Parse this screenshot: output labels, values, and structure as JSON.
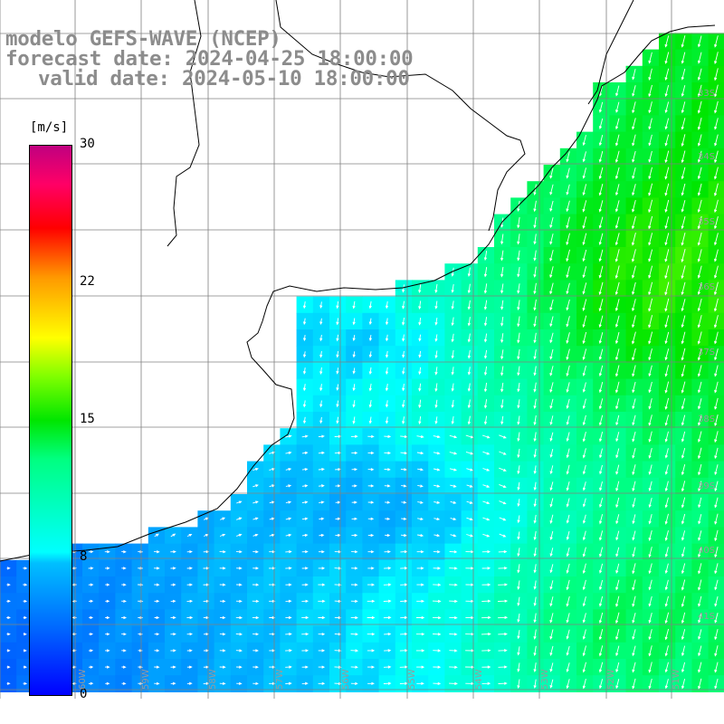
{
  "header": {
    "title": "modelo GEFS-WAVE (NCEP)",
    "forecast": "forecast date: 2024-04-25 18:00:00",
    "valid": "valid date: 2024-05-10 18:00:00"
  },
  "colorbar": {
    "unit": "[m/s]",
    "min": 0,
    "max": 30,
    "ticks": [
      "30",
      "22",
      "15",
      "8",
      "0"
    ],
    "colors": {
      "low": "#0000ff",
      "mid_low": "#00ffff",
      "mid": "#00e600",
      "mid_high": "#ffff00",
      "high": "#ff0000",
      "top": "#c00080"
    }
  },
  "grid": {
    "lon_labels": [
      "60W",
      "59W",
      "58W",
      "57W",
      "56W",
      "55W",
      "54W",
      "53W",
      "52W",
      "51W"
    ],
    "lat_labels": [
      "33S",
      "34S",
      "35S",
      "36S",
      "37S",
      "38S",
      "39S",
      "40S",
      "41S"
    ]
  },
  "field": {
    "variable": "wind speed",
    "units": "m/s",
    "colors": {
      "land": "#ffffff",
      "coast": "#000000",
      "grid": "#808080",
      "arrow": "#ffffff"
    }
  }
}
